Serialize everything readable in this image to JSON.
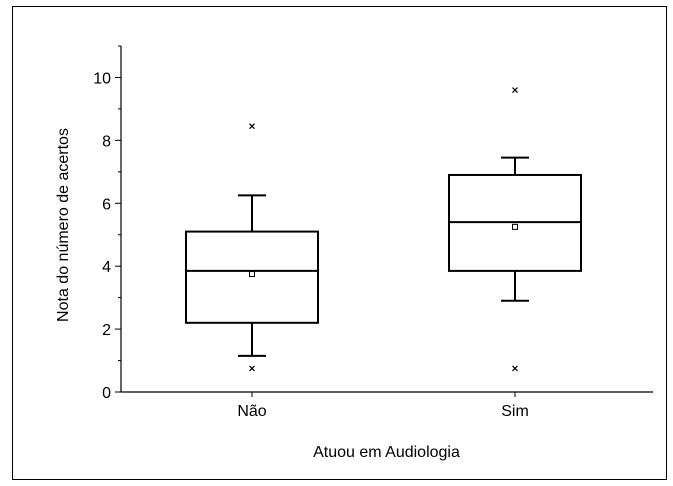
{
  "chart_data": {
    "type": "box",
    "xlabel": "Atuou em Audiologia",
    "ylabel": "Nota do número de acertos",
    "ylim": [
      0,
      11
    ],
    "yticks": [
      0,
      2,
      4,
      6,
      8,
      10
    ],
    "categories": [
      "Não",
      "Sim"
    ],
    "boxes": [
      {
        "category": "Não",
        "whisker_low": 1.15,
        "q1": 2.2,
        "median": 3.85,
        "q3": 5.1,
        "whisker_high": 6.25,
        "mean": 3.75,
        "outliers": [
          0.75,
          8.45
        ]
      },
      {
        "category": "Sim",
        "whisker_low": 2.9,
        "q1": 3.85,
        "median": 5.4,
        "q3": 6.9,
        "whisker_high": 7.45,
        "mean": 5.25,
        "outliers": [
          0.75,
          9.6
        ]
      }
    ],
    "grid": false,
    "legend": "none"
  }
}
